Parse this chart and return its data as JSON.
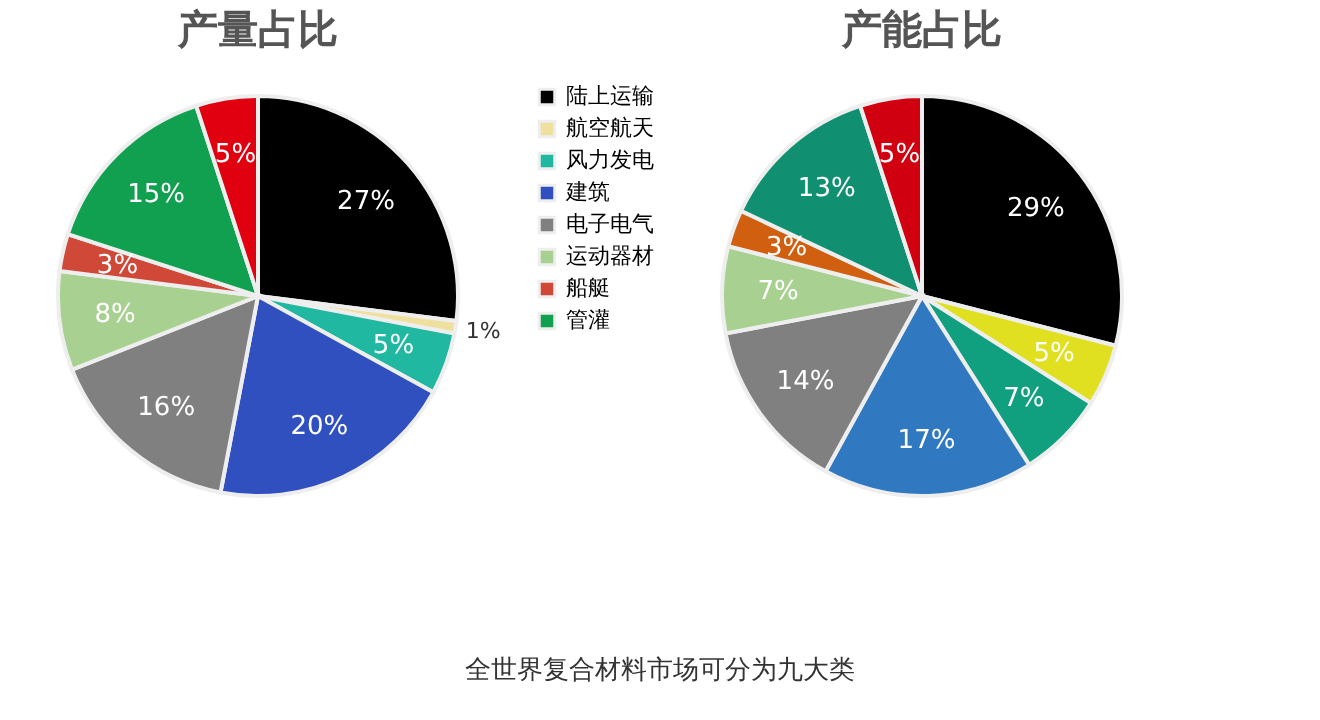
{
  "chart_data": [
    {
      "type": "pie",
      "title": "产量占比",
      "categories": [
        "陆上运输",
        "航空航天",
        "风力发电",
        "建筑",
        "电子电气",
        "运动器材",
        "船艇",
        "管灌",
        null
      ],
      "values": [
        27,
        1,
        5,
        20,
        16,
        8,
        3,
        15,
        5
      ],
      "value_labels": [
        "27%",
        "1%",
        "5%",
        "20%",
        "16%",
        "8%",
        "3%",
        "15%",
        "5%"
      ],
      "colors": [
        "#000000",
        "#f0e0a0",
        "#20b8a0",
        "#3050c0",
        "#808080",
        "#a8d090",
        "#d04838",
        "#10a050",
        "#e00010"
      ],
      "legend": "right"
    },
    {
      "type": "pie",
      "title": "产能占比",
      "categories": [
        null,
        null,
        null,
        null,
        null,
        null,
        null,
        null,
        null
      ],
      "values": [
        29,
        5,
        7,
        17,
        14,
        7,
        3,
        13,
        5
      ],
      "value_labels": [
        "29%",
        "5%",
        "7%",
        "17%",
        "14%",
        "7%",
        "3%",
        "13%",
        "5%"
      ],
      "colors": [
        "#000000",
        "#e0e020",
        "#10a080",
        "#3078c0",
        "#808080",
        "#a8d090",
        "#d06010",
        "#109070",
        "#d00010"
      ],
      "annotations": [
        "全世界复合材料市场可分为九大类"
      ]
    }
  ]
}
